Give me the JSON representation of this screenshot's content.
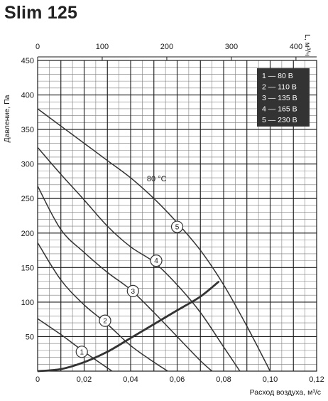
{
  "title": "Slim 125",
  "chart_data": {
    "type": "line",
    "xlabel": "Расход воздуха, м³/с",
    "ylabel": "Давление, Па",
    "x2label": "L, м³/ч",
    "xlim": [
      0,
      0.12
    ],
    "ylim": [
      0,
      450
    ],
    "x2lim": [
      0,
      432
    ],
    "xticks": [
      {
        "v": 0,
        "label": "0"
      },
      {
        "v": 0.02,
        "label": "0,02"
      },
      {
        "v": 0.04,
        "label": "0,04"
      },
      {
        "v": 0.06,
        "label": "0,06"
      },
      {
        "v": 0.08,
        "label": "0,08"
      },
      {
        "v": 0.1,
        "label": "0,10"
      },
      {
        "v": 0.12,
        "label": "0,12"
      }
    ],
    "x2ticks": [
      {
        "v": 0,
        "label": "0"
      },
      {
        "v": 100,
        "label": "100"
      },
      {
        "v": 200,
        "label": "200"
      },
      {
        "v": 300,
        "label": "300"
      },
      {
        "v": 400,
        "label": "400"
      }
    ],
    "yticks": [
      {
        "v": 50,
        "label": "50"
      },
      {
        "v": 100,
        "label": "100"
      },
      {
        "v": 150,
        "label": "150"
      },
      {
        "v": 200,
        "label": "200"
      },
      {
        "v": 250,
        "label": "250"
      },
      {
        "v": 300,
        "label": "300"
      },
      {
        "v": 350,
        "label": "350"
      },
      {
        "v": 400,
        "label": "400"
      },
      {
        "v": 450,
        "label": "450"
      }
    ],
    "grid": true,
    "annotation": {
      "text": "80 °C",
      "x": 0.047,
      "y": 275
    },
    "legend": {
      "placement": "top-right",
      "entries": [
        "1 — 80 В",
        "2 — 110 В",
        "3 — 135 В",
        "4 — 165 В",
        "5 — 230 В"
      ]
    },
    "series": [
      {
        "label": "1",
        "label_pos": [
          0.019,
          28
        ],
        "points": [
          [
            0,
            76
          ],
          [
            0.01,
            53
          ],
          [
            0.02,
            28
          ],
          [
            0.032,
            0
          ]
        ]
      },
      {
        "label": "2",
        "label_pos": [
          0.029,
          73
        ],
        "points": [
          [
            0,
            186
          ],
          [
            0.01,
            132
          ],
          [
            0.02,
            96
          ],
          [
            0.03,
            68
          ],
          [
            0.04,
            37
          ],
          [
            0.05,
            13
          ],
          [
            0.056,
            0
          ]
        ]
      },
      {
        "label": "3",
        "label_pos": [
          0.041,
          116
        ],
        "points": [
          [
            0,
            268
          ],
          [
            0.01,
            205
          ],
          [
            0.02,
            172
          ],
          [
            0.03,
            143
          ],
          [
            0.04,
            118
          ],
          [
            0.05,
            85
          ],
          [
            0.06,
            50
          ],
          [
            0.07,
            15
          ],
          [
            0.075,
            0
          ]
        ]
      },
      {
        "label": "4",
        "label_pos": [
          0.051,
          160
        ],
        "points": [
          [
            0,
            324
          ],
          [
            0.01,
            285
          ],
          [
            0.02,
            248
          ],
          [
            0.03,
            210
          ],
          [
            0.04,
            180
          ],
          [
            0.05,
            158
          ],
          [
            0.06,
            125
          ],
          [
            0.07,
            85
          ],
          [
            0.08,
            35
          ],
          [
            0.087,
            0
          ]
        ]
      },
      {
        "label": "5",
        "label_pos": [
          0.06,
          209
        ],
        "points": [
          [
            0,
            380
          ],
          [
            0.01,
            355
          ],
          [
            0.02,
            330
          ],
          [
            0.03,
            305
          ],
          [
            0.04,
            280
          ],
          [
            0.05,
            250
          ],
          [
            0.06,
            215
          ],
          [
            0.07,
            175
          ],
          [
            0.08,
            125
          ],
          [
            0.09,
            65
          ],
          [
            0.1,
            0
          ]
        ]
      }
    ],
    "system_curve": {
      "points": [
        [
          0,
          0
        ],
        [
          0.01,
          3
        ],
        [
          0.02,
          13
        ],
        [
          0.03,
          28
        ],
        [
          0.04,
          48
        ],
        [
          0.05,
          68
        ],
        [
          0.06,
          88
        ],
        [
          0.07,
          108
        ],
        [
          0.078,
          130
        ]
      ]
    }
  }
}
